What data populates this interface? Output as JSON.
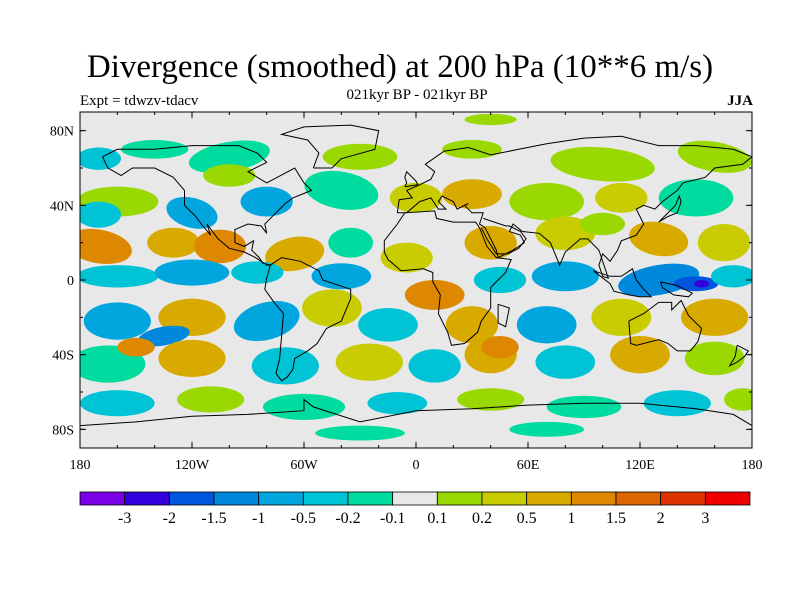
{
  "map": {
    "title": "Divergence (smoothed) at 200 hPa (10**6 m/s)",
    "subtitle": "021kyr BP - 021kyr BP",
    "expt_label": "Expt = tdwzv-tdacv",
    "season": "JJA",
    "projection": "cylindrical equidistant",
    "lon_range": [
      -180,
      180
    ],
    "lat_range": [
      -90,
      90
    ],
    "lat_ticks": [
      {
        "value": 80,
        "label": "80N"
      },
      {
        "value": 40,
        "label": "40N"
      },
      {
        "value": 0,
        "label": "0"
      },
      {
        "value": -40,
        "label": "40S"
      },
      {
        "value": -80,
        "label": "80S"
      }
    ],
    "lon_ticks": [
      {
        "value": -180,
        "label": "180"
      },
      {
        "value": -120,
        "label": "120W"
      },
      {
        "value": -60,
        "label": "60W"
      },
      {
        "value": 0,
        "label": "0"
      },
      {
        "value": 60,
        "label": "60E"
      },
      {
        "value": 120,
        "label": "120E"
      },
      {
        "value": 180,
        "label": "180"
      }
    ],
    "colorbar": {
      "colors": [
        "#7a00e6",
        "#3300dd",
        "#0055dd",
        "#0088dd",
        "#00a6dd",
        "#00c4d6",
        "#00dca0",
        "#e8e8e8",
        "#99d800",
        "#c8cc00",
        "#d8aa00",
        "#dd8800",
        "#dd6600",
        "#dd3300",
        "#ee0000"
      ],
      "labels": [
        "-3",
        "-2",
        "-1.5",
        "-1",
        "-0.5",
        "-0.2",
        "-0.1",
        "0.1",
        "0.2",
        "0.5",
        "1",
        "1.5",
        "2",
        "3"
      ]
    },
    "colors": {
      "background_field": "#e8e8e8",
      "coastline": "#000000"
    }
  }
}
